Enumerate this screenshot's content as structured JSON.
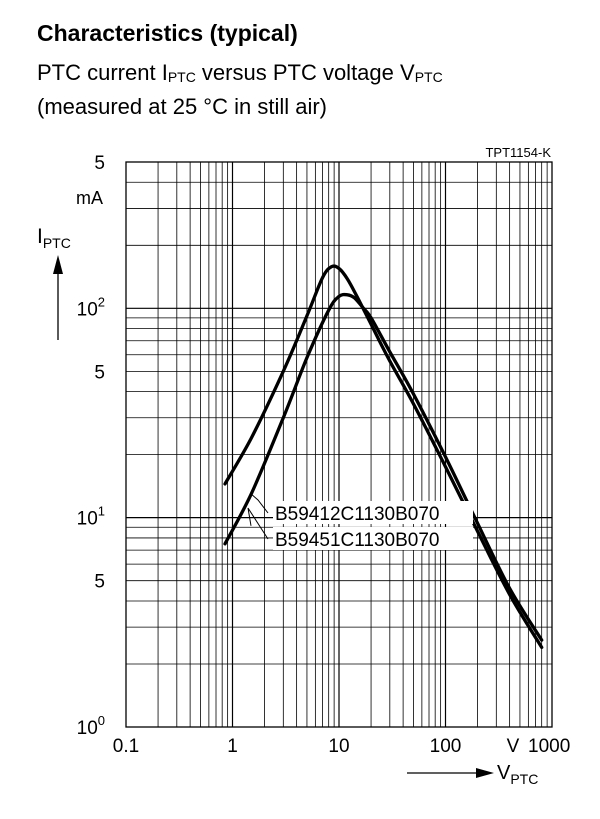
{
  "page": {
    "heading": "Characteristics (typical)",
    "subtitle_line1_pre": "PTC current I",
    "subtitle_line1_sub1": "PTC",
    "subtitle_line1_mid": " versus PTC voltage V",
    "subtitle_line1_sub2": "PTC",
    "subtitle_line2": "(measured at 25 °C in still air)",
    "figure_code": "TPT1154-K"
  },
  "chart_data": {
    "type": "line",
    "x_scale": "log",
    "y_scale": "log",
    "xlim": [
      0.1,
      1000
    ],
    "ylim": [
      1,
      500
    ],
    "grid": true,
    "xlabel_main": "V",
    "xlabel_sub": "PTC",
    "ylabel_main": "I",
    "ylabel_sub": "PTC",
    "x_unit": "V",
    "y_unit": "mA",
    "x_ticks": [
      {
        "value": 0.1,
        "label": "0.1"
      },
      {
        "value": 1,
        "label": "1"
      },
      {
        "value": 10,
        "label": "10"
      },
      {
        "value": 100,
        "label": "100"
      },
      {
        "value": 1000,
        "label": "1000"
      }
    ],
    "y_ticks": [
      {
        "value": 1,
        "base": "10",
        "exp": "0"
      },
      {
        "value": 5,
        "base": "5",
        "exp": ""
      },
      {
        "value": 10,
        "base": "10",
        "exp": "1"
      },
      {
        "value": 50,
        "base": "5",
        "exp": ""
      },
      {
        "value": 100,
        "base": "10",
        "exp": "2"
      },
      {
        "value": 500,
        "base": "5",
        "exp": ""
      }
    ],
    "series": [
      {
        "name": "B59412C1130B070",
        "x": [
          0.85,
          1.5,
          3,
          5,
          7,
          8.5,
          10,
          12,
          15,
          20,
          30,
          50,
          100,
          200,
          400,
          800
        ],
        "y": [
          14.5,
          24,
          50,
          92,
          140,
          158,
          155,
          138,
          112,
          84,
          56,
          35,
          17.5,
          8.6,
          4.3,
          2.4
        ]
      },
      {
        "name": "B59451C1130B070",
        "x": [
          0.85,
          1.5,
          3,
          5,
          8,
          10,
          12,
          14,
          17,
          20,
          30,
          50,
          100,
          200,
          400,
          800
        ],
        "y": [
          7.5,
          13,
          30,
          58,
          98,
          114,
          116,
          112,
          100,
          90,
          62,
          39,
          19.5,
          9.4,
          4.6,
          2.6
        ]
      }
    ]
  }
}
